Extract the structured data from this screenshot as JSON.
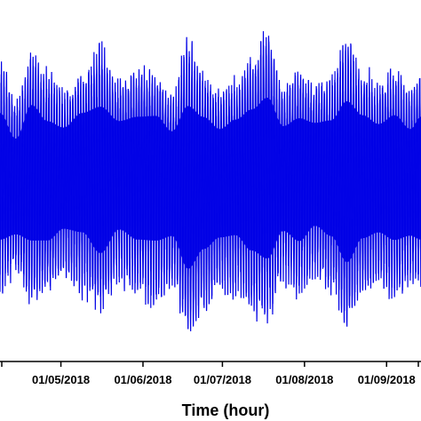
{
  "chart_data": {
    "type": "line",
    "title": "",
    "xlabel": "Time (hour)",
    "ylabel": "",
    "x_ticks": [
      "01/05/2018",
      "01/06/2018",
      "01/07/2018",
      "01/08/2018",
      "01/09/2018"
    ],
    "x_range_dates": [
      "2018-04-08",
      "2018-09-14"
    ],
    "y_ticks_visible": false,
    "grid": false,
    "legend": "none",
    "series": [
      {
        "color": "#0000e6",
        "description_envelope": {
          "dates": [
            "2018-04-08",
            "2018-04-14",
            "2018-04-20",
            "2018-04-26",
            "2018-05-02",
            "2018-05-09",
            "2018-05-16",
            "2018-05-23",
            "2018-05-30",
            "2018-06-06",
            "2018-06-12",
            "2018-06-18",
            "2018-06-24",
            "2018-06-30",
            "2018-07-06",
            "2018-07-12",
            "2018-07-18",
            "2018-07-24",
            "2018-07-30",
            "2018-08-05",
            "2018-08-11",
            "2018-08-17",
            "2018-08-23",
            "2018-08-29",
            "2018-09-04",
            "2018-09-10",
            "2018-09-14"
          ],
          "upper": [
            0.88,
            0.78,
            0.9,
            0.86,
            0.8,
            0.84,
            0.94,
            0.82,
            0.86,
            0.84,
            0.78,
            0.96,
            0.85,
            0.8,
            0.82,
            0.9,
            0.99,
            0.8,
            0.86,
            0.81,
            0.84,
            0.97,
            0.86,
            0.82,
            0.86,
            0.8,
            0.86
          ],
          "lower": [
            0.18,
            0.25,
            0.15,
            0.2,
            0.24,
            0.18,
            0.13,
            0.22,
            0.18,
            0.15,
            0.2,
            0.06,
            0.12,
            0.2,
            0.18,
            0.12,
            0.1,
            0.22,
            0.18,
            0.24,
            0.2,
            0.08,
            0.18,
            0.22,
            0.17,
            0.21,
            0.18
          ],
          "median": [
            0.55,
            0.5,
            0.58,
            0.52,
            0.55,
            0.6,
            0.52,
            0.57,
            0.55,
            0.58,
            0.55,
            0.5,
            0.56,
            0.54,
            0.58,
            0.55,
            0.52,
            0.56,
            0.54,
            0.57,
            0.55,
            0.52,
            0.56,
            0.55,
            0.56,
            0.54,
            0.55
          ]
        }
      }
    ]
  }
}
